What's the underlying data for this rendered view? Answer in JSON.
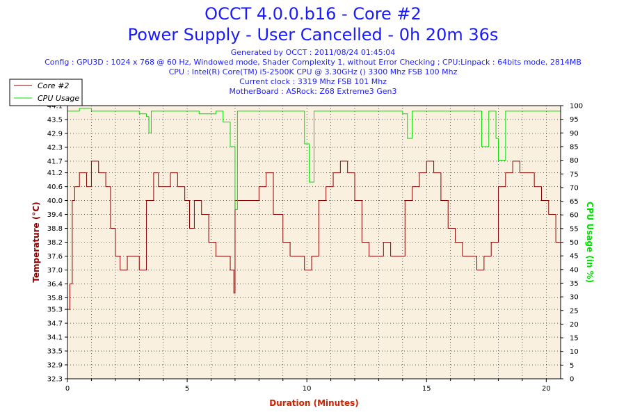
{
  "header": {
    "title": "OCCT 4.0.0.b16 - Core #2",
    "subtitle": "Power Supply - User Cancelled - 0h 20m 36s",
    "generated": "Generated by OCCT : 2011/08/24 01:45:04",
    "config": "Config : GPU3D : 1024 x 768 @ 60 Hz, Windowed mode, Shader Complexity 1, without Error Checking ; CPU:Linpack : 64bits mode, 2814MB",
    "cpu": "CPU : Intel(R) Core(TM) i5-2500K CPU @ 3.30GHz () 3300 Mhz FSB 100 Mhz",
    "clock": "Current clock : 3319 Mhz FSB 101 Mhz",
    "motherboard": "MotherBoard : ASRock: Z68 Extreme3 Gen3"
  },
  "colors": {
    "title": "#1a1aff",
    "temp": "#8b0000",
    "cpu": "#00e000",
    "plot_bg": "#faf0e0",
    "xlabel": "#cc2200"
  },
  "chart_data": {
    "type": "line",
    "xlabel": "Duration (Minutes)",
    "ylabel_left": "Temperature (°C)",
    "ylabel_right": "CPU Usage (in %)",
    "xlim": [
      0,
      20.6
    ],
    "ylim_left": [
      32.3,
      44.1
    ],
    "ylim_right": [
      0,
      100
    ],
    "x_ticks": [
      0,
      5,
      10,
      15,
      20
    ],
    "y_ticks_left": [
      32.3,
      32.9,
      33.5,
      34.1,
      34.7,
      35.3,
      35.8,
      36.4,
      37.0,
      37.6,
      38.2,
      38.8,
      39.4,
      40.0,
      40.6,
      41.2,
      41.7,
      42.3,
      42.9,
      43.5,
      44.1
    ],
    "y_ticks_right": [
      0,
      5,
      10,
      15,
      20,
      25,
      30,
      35,
      40,
      45,
      50,
      55,
      60,
      65,
      70,
      75,
      80,
      85,
      90,
      95,
      100
    ],
    "legend_position": "top-left",
    "grid": true,
    "series": [
      {
        "name": "Core #2",
        "axis": "left",
        "x": [
          0,
          0.1,
          0.2,
          0.3,
          0.5,
          0.8,
          1.0,
          1.3,
          1.6,
          1.8,
          2.0,
          2.2,
          2.5,
          2.8,
          3.0,
          3.3,
          3.6,
          3.8,
          4.0,
          4.3,
          4.6,
          4.9,
          5.1,
          5.3,
          5.6,
          5.9,
          6.2,
          6.5,
          6.8,
          6.95,
          7.0,
          7.3,
          7.6,
          8.0,
          8.3,
          8.6,
          9.0,
          9.3,
          9.6,
          9.9,
          10.2,
          10.5,
          10.8,
          11.1,
          11.4,
          11.7,
          12.0,
          12.3,
          12.6,
          12.9,
          13.2,
          13.5,
          13.8,
          14.1,
          14.4,
          14.7,
          15.0,
          15.3,
          15.6,
          15.9,
          16.2,
          16.5,
          16.8,
          17.1,
          17.4,
          17.7,
          18.0,
          18.3,
          18.6,
          18.9,
          19.2,
          19.5,
          19.8,
          20.1,
          20.4,
          20.6
        ],
        "y": [
          35.3,
          36.4,
          40.0,
          40.6,
          41.2,
          40.6,
          41.7,
          41.2,
          40.6,
          38.8,
          37.6,
          37.0,
          37.6,
          37.6,
          37.0,
          40.0,
          41.2,
          40.6,
          40.6,
          41.2,
          40.6,
          40.0,
          38.8,
          40.0,
          39.4,
          38.2,
          37.6,
          37.6,
          37.0,
          36.0,
          40.0,
          40.0,
          40.0,
          40.6,
          41.2,
          39.4,
          38.2,
          37.6,
          37.6,
          37.0,
          37.6,
          40.0,
          40.6,
          41.2,
          41.7,
          41.2,
          40.0,
          38.2,
          37.6,
          37.6,
          38.2,
          37.6,
          37.6,
          40.0,
          40.6,
          41.2,
          41.7,
          41.2,
          40.0,
          38.8,
          38.2,
          37.6,
          37.6,
          37.0,
          37.6,
          38.2,
          40.6,
          41.2,
          41.7,
          41.2,
          41.2,
          40.6,
          40.0,
          39.4,
          38.2,
          37.6
        ]
      },
      {
        "name": "CPU Usage",
        "axis": "right",
        "x": [
          0,
          0.5,
          1.0,
          2.0,
          3.0,
          3.3,
          3.4,
          3.5,
          4.5,
          5.5,
          6.2,
          6.5,
          6.8,
          7.0,
          7.1,
          7.5,
          9.5,
          9.9,
          10.1,
          10.3,
          10.6,
          12.0,
          13.5,
          14.0,
          14.2,
          14.4,
          16.0,
          17.0,
          17.3,
          17.6,
          17.9,
          18.0,
          18.3,
          19.0,
          20.0,
          20.6
        ],
        "y": [
          98,
          99,
          98,
          98,
          97,
          96,
          90,
          98,
          98,
          97,
          98,
          94,
          85,
          62,
          98,
          98,
          98,
          86,
          72,
          98,
          98,
          98,
          98,
          97,
          88,
          98,
          98,
          98,
          85,
          98,
          88,
          80,
          98,
          98,
          98,
          97
        ]
      }
    ]
  }
}
